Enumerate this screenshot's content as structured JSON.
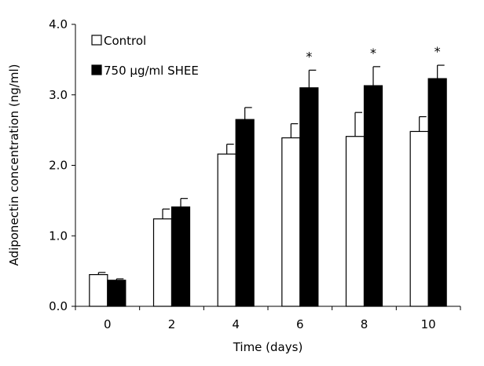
{
  "chart_data": {
    "type": "bar",
    "title": "",
    "xlabel": "Time (days)",
    "ylabel": "Adiponectin concentration (ng/ml)",
    "categories": [
      "0",
      "2",
      "4",
      "6",
      "8",
      "10"
    ],
    "ylim": [
      0,
      4
    ],
    "yticks": [
      "0.0",
      "1.0",
      "2.0",
      "3.0",
      "4.0"
    ],
    "grid": false,
    "legend_position": "top-left",
    "series": [
      {
        "name": "Control",
        "values": [
          0.45,
          1.24,
          2.16,
          2.39,
          2.41,
          2.48
        ],
        "errors": [
          0.03,
          0.14,
          0.14,
          0.2,
          0.34,
          0.21
        ],
        "fill": "#ffffff",
        "stroke": "#000000"
      },
      {
        "name": "750 μg/ml SHEE",
        "values": [
          0.37,
          1.41,
          2.65,
          3.1,
          3.13,
          3.23
        ],
        "errors": [
          0.02,
          0.12,
          0.17,
          0.25,
          0.27,
          0.19
        ],
        "fill": "#000000",
        "stroke": "#000000"
      }
    ],
    "annotations": [
      {
        "text": "*",
        "category": "6"
      },
      {
        "text": "*",
        "category": "8"
      },
      {
        "text": "*",
        "category": "10"
      }
    ]
  }
}
